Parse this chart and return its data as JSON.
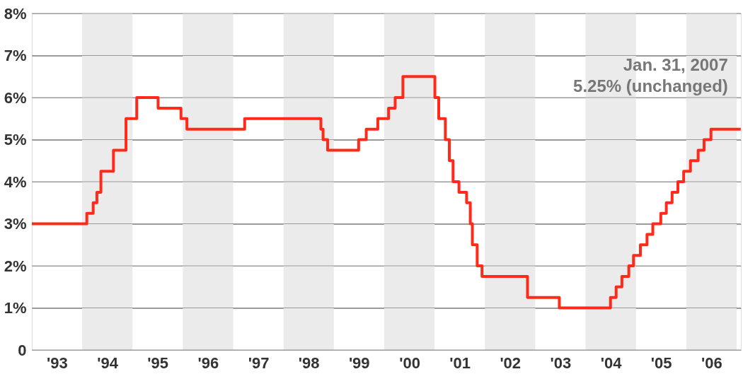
{
  "chart_data": {
    "type": "step",
    "x": [
      "1993-01-01",
      "1994-02-04",
      "1994-03-22",
      "1994-04-18",
      "1994-05-17",
      "1994-08-16",
      "1994-11-15",
      "1995-02-01",
      "1995-07-06",
      "1995-12-19",
      "1996-01-31",
      "1997-03-25",
      "1998-09-29",
      "1998-10-15",
      "1998-11-17",
      "1999-06-30",
      "1999-08-24",
      "1999-11-16",
      "2000-02-02",
      "2000-03-21",
      "2000-05-16",
      "2001-01-03",
      "2001-01-31",
      "2001-03-20",
      "2001-04-18",
      "2001-05-15",
      "2001-06-27",
      "2001-08-21",
      "2001-09-17",
      "2001-10-02",
      "2001-11-06",
      "2001-12-11",
      "2002-11-06",
      "2003-06-25",
      "2004-06-30",
      "2004-08-10",
      "2004-09-21",
      "2004-11-10",
      "2004-12-14",
      "2005-02-02",
      "2005-03-22",
      "2005-05-03",
      "2005-06-30",
      "2005-08-09",
      "2005-09-20",
      "2005-11-01",
      "2005-12-13",
      "2006-01-31",
      "2006-03-28",
      "2006-05-10",
      "2006-06-29",
      "2007-01-31"
    ],
    "series": [
      {
        "color": "#ff2a1a",
        "values": [
          3.0,
          3.25,
          3.5,
          3.75,
          4.25,
          4.75,
          5.5,
          6.0,
          5.75,
          5.5,
          5.25,
          5.5,
          5.25,
          5.0,
          4.75,
          5.0,
          5.25,
          5.5,
          5.75,
          6.0,
          6.5,
          6.0,
          5.5,
          5.0,
          4.5,
          4.0,
          3.75,
          3.5,
          3.0,
          2.5,
          2.0,
          1.75,
          1.25,
          1.0,
          1.25,
          1.5,
          1.75,
          2.0,
          2.25,
          2.5,
          2.75,
          3.0,
          3.25,
          3.5,
          3.75,
          4.0,
          4.25,
          4.5,
          4.75,
          5.0,
          5.25,
          5.25
        ]
      }
    ],
    "xlim": [
      "1993-01-01",
      "2007-02-01"
    ],
    "xticks": [
      {
        "value": "1993-07-02",
        "label": "'93"
      },
      {
        "value": "1994-07-02",
        "label": "'94"
      },
      {
        "value": "1995-07-02",
        "label": "'95"
      },
      {
        "value": "1996-07-02",
        "label": "'96"
      },
      {
        "value": "1997-07-02",
        "label": "'97"
      },
      {
        "value": "1998-07-02",
        "label": "'98"
      },
      {
        "value": "1999-07-02",
        "label": "'99"
      },
      {
        "value": "2000-07-02",
        "label": "'00"
      },
      {
        "value": "2001-07-02",
        "label": "'01"
      },
      {
        "value": "2002-07-02",
        "label": "'02"
      },
      {
        "value": "2003-07-02",
        "label": "'03"
      },
      {
        "value": "2004-07-02",
        "label": "'04"
      },
      {
        "value": "2005-07-02",
        "label": "'05"
      },
      {
        "value": "2006-07-02",
        "label": "'06"
      }
    ],
    "ylim": [
      0,
      8
    ],
    "yticks": [
      {
        "value": 0,
        "label": "0"
      },
      {
        "value": 1,
        "label": "1%"
      },
      {
        "value": 2,
        "label": "2%"
      },
      {
        "value": 3,
        "label": "3%"
      },
      {
        "value": 4,
        "label": "4%"
      },
      {
        "value": 5,
        "label": "5%"
      },
      {
        "value": 6,
        "label": "6%"
      },
      {
        "value": 7,
        "label": "7%"
      },
      {
        "value": 8,
        "label": "8%"
      }
    ],
    "grid": "y",
    "bands": [
      {
        "axis": "x",
        "from": "1994-01-01",
        "to": "1995-01-01",
        "label": null,
        "color": "#ebebeb"
      },
      {
        "axis": "x",
        "from": "1996-01-01",
        "to": "1997-01-01",
        "label": null,
        "color": "#ebebeb"
      },
      {
        "axis": "x",
        "from": "1998-01-01",
        "to": "1999-01-01",
        "label": null,
        "color": "#ebebeb"
      },
      {
        "axis": "x",
        "from": "2000-01-01",
        "to": "2001-01-01",
        "label": null,
        "color": "#ebebeb"
      },
      {
        "axis": "x",
        "from": "2002-01-01",
        "to": "2003-01-01",
        "label": null,
        "color": "#ebebeb"
      },
      {
        "axis": "x",
        "from": "2004-01-01",
        "to": "2005-01-01",
        "label": null,
        "color": "#ebebeb"
      },
      {
        "axis": "x",
        "from": "2006-01-01",
        "to": "2007-01-01",
        "label": null,
        "color": "#ebebeb"
      }
    ],
    "annotations": [
      {
        "text": "Jan. 31, 2007\n5.25% (unchanged)",
        "x": "2007-01-31",
        "y": 5.25
      }
    ]
  }
}
